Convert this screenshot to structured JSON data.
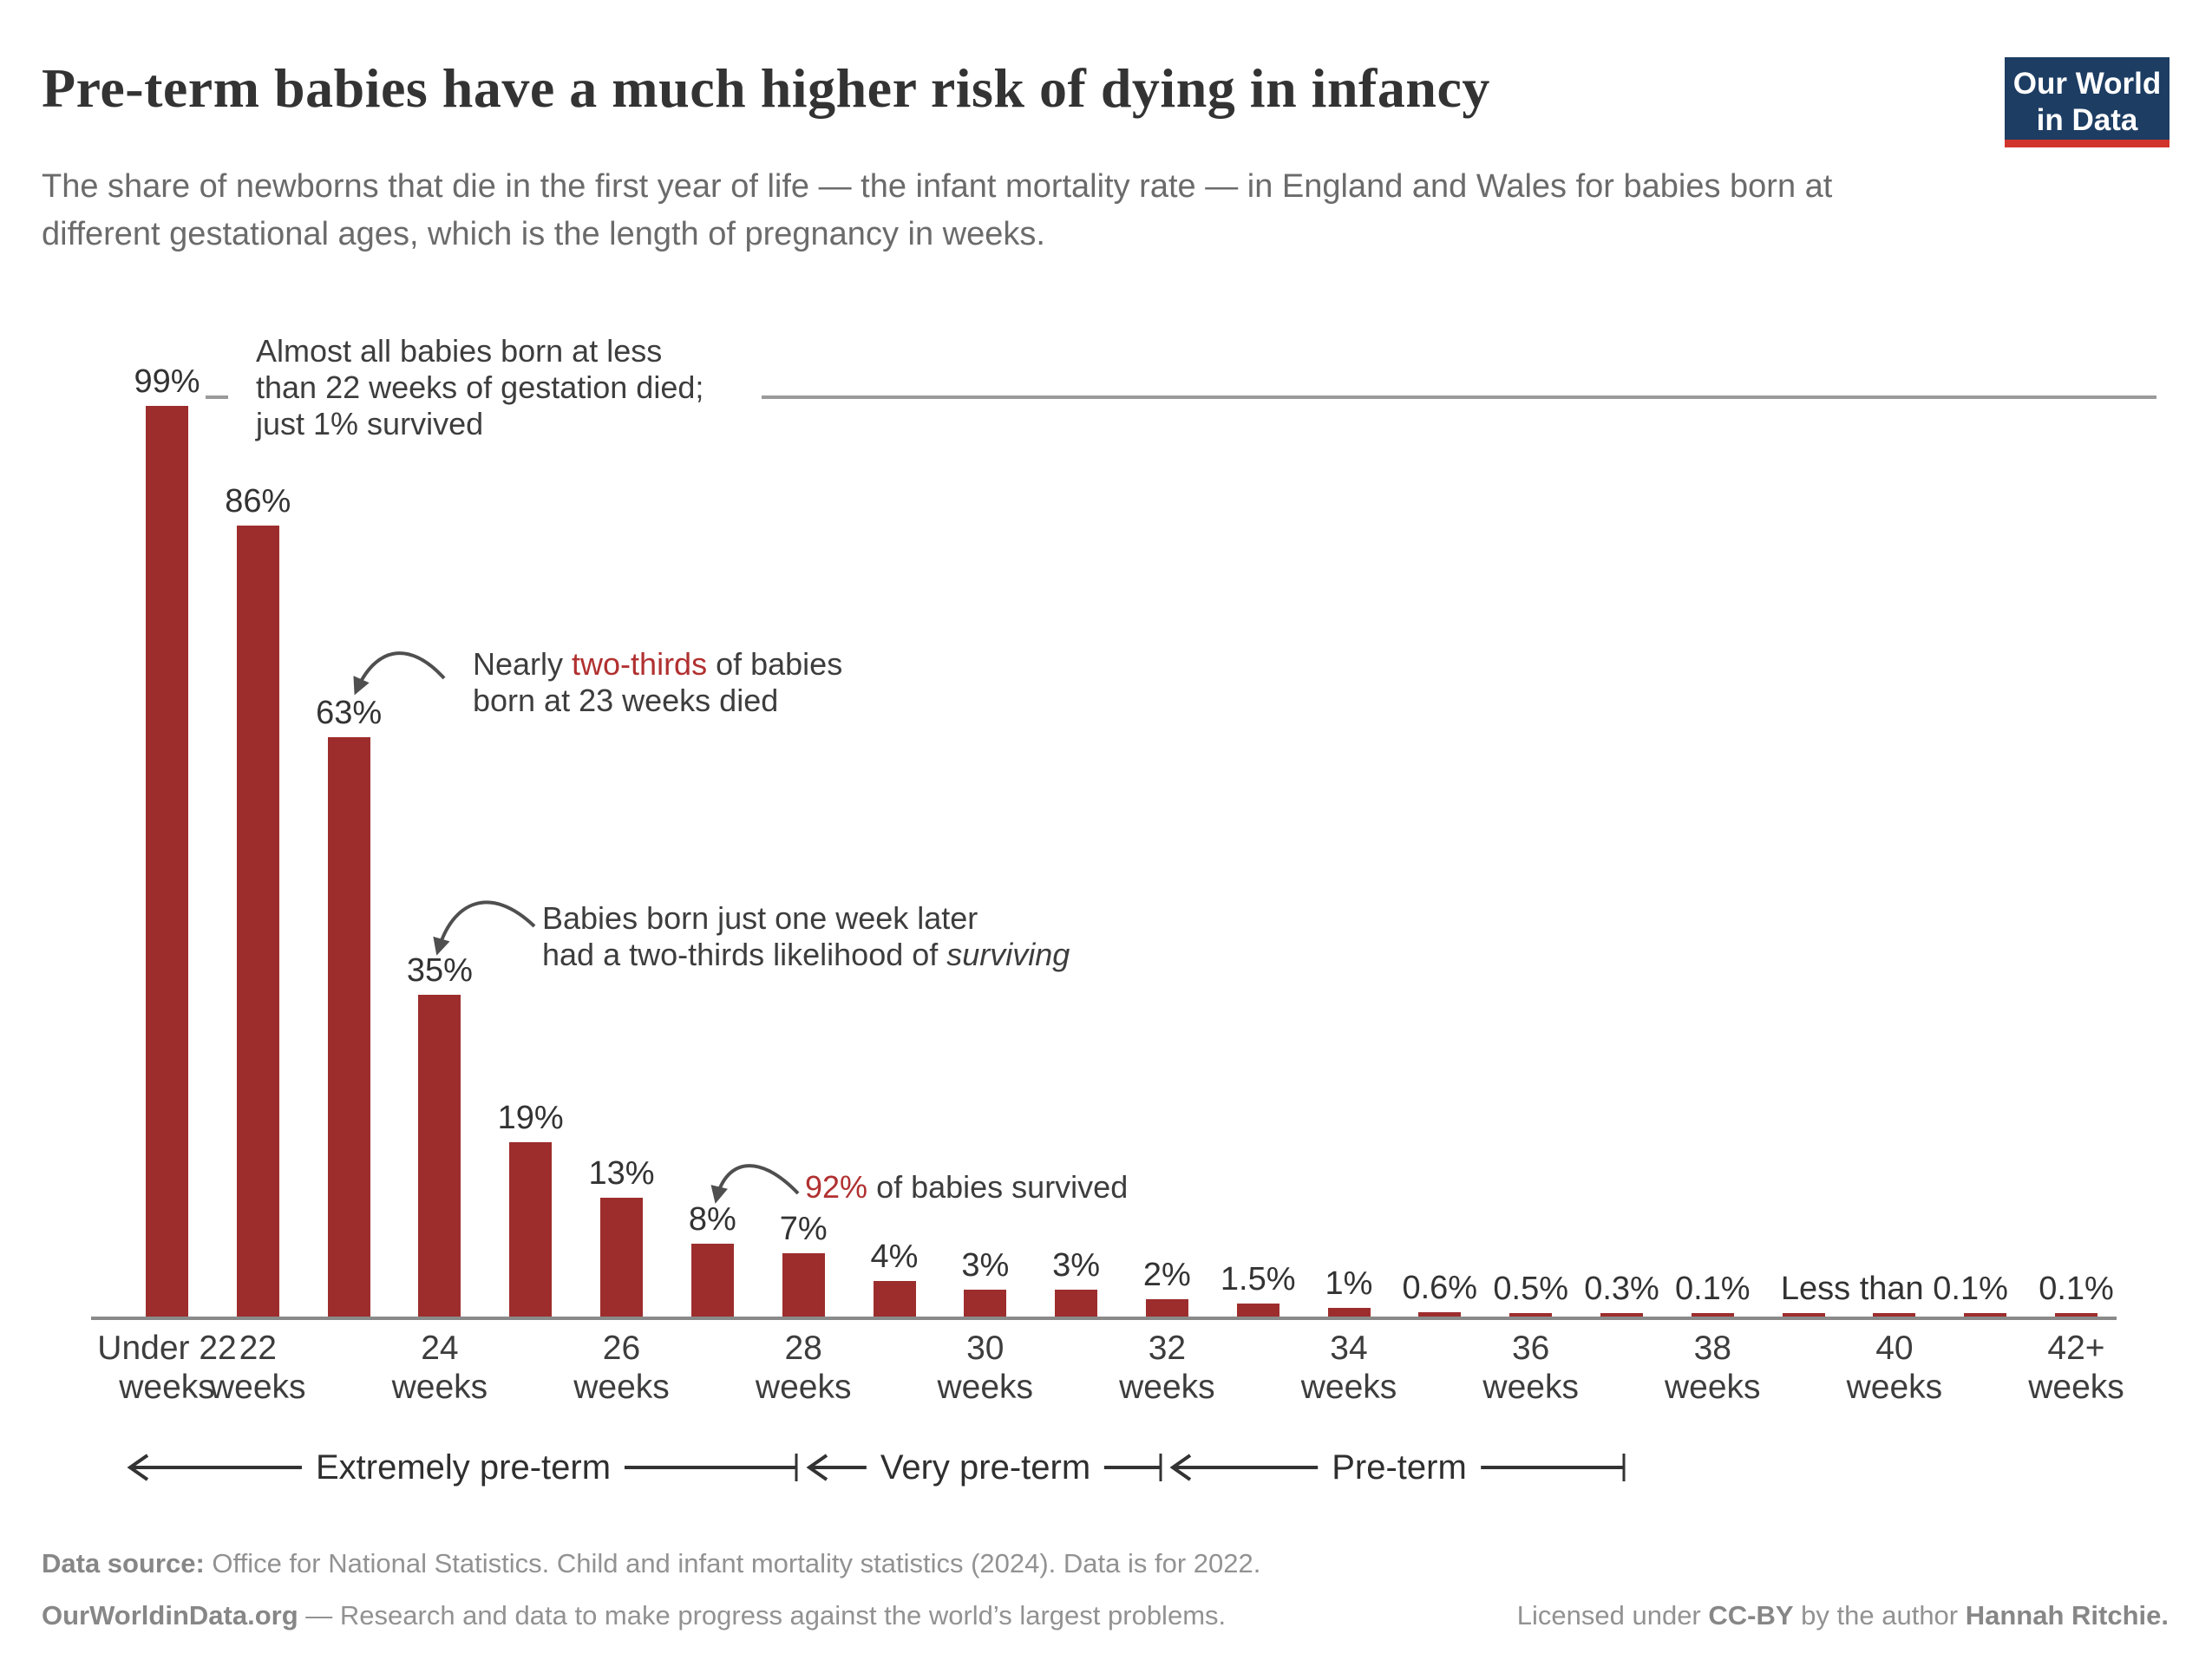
{
  "header": {
    "title": "Pre-term babies have a much higher risk of dying in infancy",
    "subtitle_lines": [
      "The share of newborns that die in the first year of life — the infant mortality rate — in England and Wales for babies born at",
      "different gestational ages, which is the length of pregnancy in weeks."
    ],
    "logo": {
      "line1": "Our World",
      "line2": "in Data"
    }
  },
  "annotations": {
    "under22": {
      "lines": [
        "Almost all babies born at less",
        "than 22 weeks of gestation died;",
        "just 1% survived"
      ]
    },
    "wk23": {
      "pre": "Nearly ",
      "accent": "two-thirds",
      "post": " of babies",
      "line2": "born at 23 weeks died"
    },
    "wk24": {
      "line1": "Babies born just one week later",
      "line2_pre": "had a two-thirds likelihood of ",
      "line2_italic": "surviving"
    },
    "wk27": {
      "accent": "92%",
      "post": " of babies survived"
    }
  },
  "chart_data": {
    "type": "bar",
    "title": "Pre-term babies have a much higher risk of dying in infancy",
    "ylabel": "Infant mortality rate",
    "unit": "%",
    "ylim": [
      0,
      100
    ],
    "grid": false,
    "legend": "none",
    "categories": [
      "Under 22 weeks",
      "22 weeks",
      "23 weeks",
      "24 weeks",
      "25 weeks",
      "26 weeks",
      "27 weeks",
      "28 weeks",
      "29 weeks",
      "30 weeks",
      "31 weeks",
      "32 weeks",
      "33 weeks",
      "34 weeks",
      "35 weeks",
      "36 weeks",
      "37 weeks",
      "38 weeks",
      "39 weeks",
      "40 weeks",
      "41 weeks",
      "42+ weeks"
    ],
    "values": [
      99,
      86,
      63,
      35,
      19,
      13,
      8,
      7,
      4,
      3,
      3,
      2,
      1.5,
      1,
      0.6,
      0.5,
      0.3,
      0.1,
      0.05,
      0.05,
      0.05,
      0.1
    ],
    "value_labels": [
      "99%",
      "86%",
      "63%",
      "35%",
      "19%",
      "13%",
      "8%",
      "7%",
      "4%",
      "3%",
      "3%",
      "2%",
      "1.5%",
      "1%",
      "0.6%",
      "0.5%",
      "0.3%",
      "0.1%",
      "",
      "",
      "",
      "0.1%"
    ],
    "shared_small_label": {
      "text": "Less than 0.1%",
      "center_index": 19
    },
    "tick_indices": [
      0,
      1,
      3,
      5,
      7,
      9,
      11,
      13,
      15,
      17,
      19,
      21
    ],
    "tick_line1": [
      "Under 22",
      "22",
      "24",
      "26",
      "28",
      "30",
      "32",
      "34",
      "36",
      "38",
      "40",
      "42+"
    ],
    "tick_line2": "weeks"
  },
  "brackets": [
    {
      "label": "Extremely pre-term"
    },
    {
      "label": "Very pre-term"
    },
    {
      "label": "Pre-term"
    }
  ],
  "footer": {
    "source_bold": "Data source:",
    "source_rest": " Office for National Statistics. Child and infant mortality statistics (2024). Data is for 2022.",
    "site_bold": "OurWorldinData.org",
    "site_rest": " — Research and data to make progress against the world’s largest problems.",
    "license_pre": "Licensed under ",
    "license_cc": "CC-BY",
    "license_mid": " by the author ",
    "license_author": "Hannah Ritchie."
  },
  "colors": {
    "bar": "#9d2d2d",
    "accent_text": "#b13030",
    "axis": "#8a8a8a",
    "leader_line": "#9a9a9a",
    "arrow": "#4f4f4f",
    "logo_bg": "#1d3d63",
    "logo_red": "#d0342c"
  }
}
